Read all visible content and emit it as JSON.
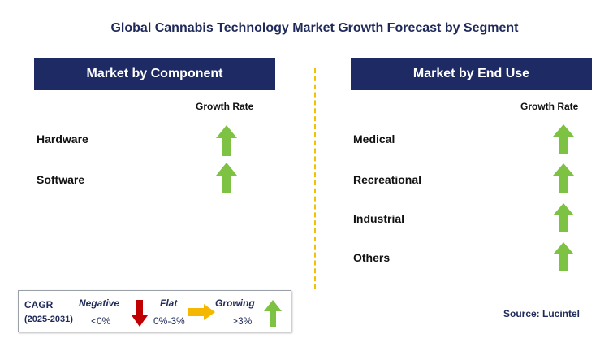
{
  "title": "Global Cannabis Technology Market Growth Forecast by Segment",
  "left_panel": {
    "header": "Market by Component",
    "growth_rate_label": "Growth Rate",
    "rows": [
      {
        "label": "Hardware",
        "trend": "growing"
      },
      {
        "label": "Software",
        "trend": "growing"
      }
    ]
  },
  "right_panel": {
    "header": "Market by End Use",
    "growth_rate_label": "Growth Rate",
    "rows": [
      {
        "label": "Medical",
        "trend": "growing"
      },
      {
        "label": "Recreational",
        "trend": "growing"
      },
      {
        "label": "Industrial",
        "trend": "growing"
      },
      {
        "label": "Others",
        "trend": "growing"
      }
    ]
  },
  "legend": {
    "cagr": "CAGR",
    "years": "(2025-2031)",
    "negative_label": "Negative",
    "negative_value": "<0%",
    "flat_label": "Flat",
    "flat_value": "0%-3%",
    "growing_label": "Growing",
    "growing_value": ">3%"
  },
  "source": "Source: Lucintel",
  "colors": {
    "header_bg": "#1e2a63",
    "growing_arrow": "#7dc242",
    "negative_arrow": "#c00000",
    "flat_arrow": "#f5b800",
    "divider": "#f2c200"
  }
}
